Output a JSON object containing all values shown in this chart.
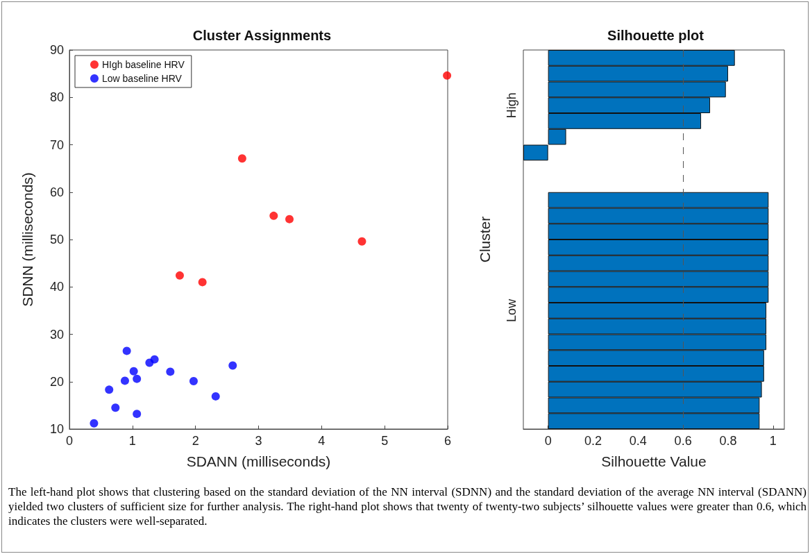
{
  "chart_data": [
    {
      "type": "scatter",
      "title": "Cluster Assignments",
      "xlabel": "SDANN (milliseconds)",
      "ylabel": "SDNN (milliseconds)",
      "xlim": [
        0,
        6
      ],
      "xticks": [
        0,
        1,
        2,
        3,
        4,
        5,
        6
      ],
      "ylim": [
        10,
        90
      ],
      "yticks": [
        10,
        20,
        30,
        40,
        50,
        60,
        70,
        80,
        90
      ],
      "marker": "circle",
      "legend": "top left",
      "series": [
        {
          "name": "HIgh baseline HRV",
          "color": "#ff0000",
          "x": [
            5.99,
            2.74,
            3.24,
            3.49,
            4.64,
            1.75,
            2.11
          ],
          "values": [
            84.6,
            67.1,
            55.0,
            54.3,
            49.6,
            42.4,
            41.0
          ]
        },
        {
          "name": "Low baseline HRV",
          "color": "#0000ff",
          "x": [
            0.91,
            1.02,
            1.07,
            0.88,
            0.63,
            0.73,
            1.07,
            0.39,
            1.27,
            1.35,
            1.6,
            1.97,
            2.32,
            2.59
          ],
          "values": [
            26.5,
            22.2,
            20.6,
            20.2,
            18.3,
            14.5,
            13.2,
            11.2,
            24.0,
            24.7,
            22.1,
            20.1,
            16.9,
            23.4
          ]
        }
      ],
      "annotations": [
        "The left-hand plot shows that clustering based on the standard deviation of the NN interval (SDNN) and the standard deviation of the average NN interval (SDANN) yielded two clusters of sufficient size for further analysis. The right-hand plot shows that twenty of twenty-two subjects’ silhouette values were greater than 0.6, which indicates the clusters were well-separated."
      ]
    },
    {
      "type": "bar",
      "orientation": "horizontal",
      "title": "Silhouette plot",
      "xlabel": "Silhouette Value",
      "ylabel": "Cluster",
      "xlim": [
        -0.11,
        1.05
      ],
      "xticks": [
        0,
        0.2,
        0.4,
        0.6,
        0.8,
        1
      ],
      "categories": [
        null,
        null,
        null,
        "High",
        null,
        null,
        null,
        null,
        null,
        null,
        null,
        null,
        null,
        null,
        null,
        null,
        "Low",
        null,
        null,
        null,
        null,
        null,
        null,
        null
      ],
      "series": [
        {
          "color": "#0072bd",
          "values": [
            0.83,
            0.8,
            0.79,
            0.72,
            0.68,
            0.08,
            -0.11,
            null,
            null,
            0.98,
            0.98,
            0.98,
            0.98,
            0.98,
            0.98,
            0.98,
            0.97,
            0.97,
            0.97,
            0.96,
            0.96,
            0.95,
            0.94,
            0.94
          ]
        }
      ],
      "ref_lines": [
        {
          "axis": "x",
          "value": 0.6,
          "color": "#555555",
          "line_style": "dashed"
        }
      ]
    }
  ]
}
